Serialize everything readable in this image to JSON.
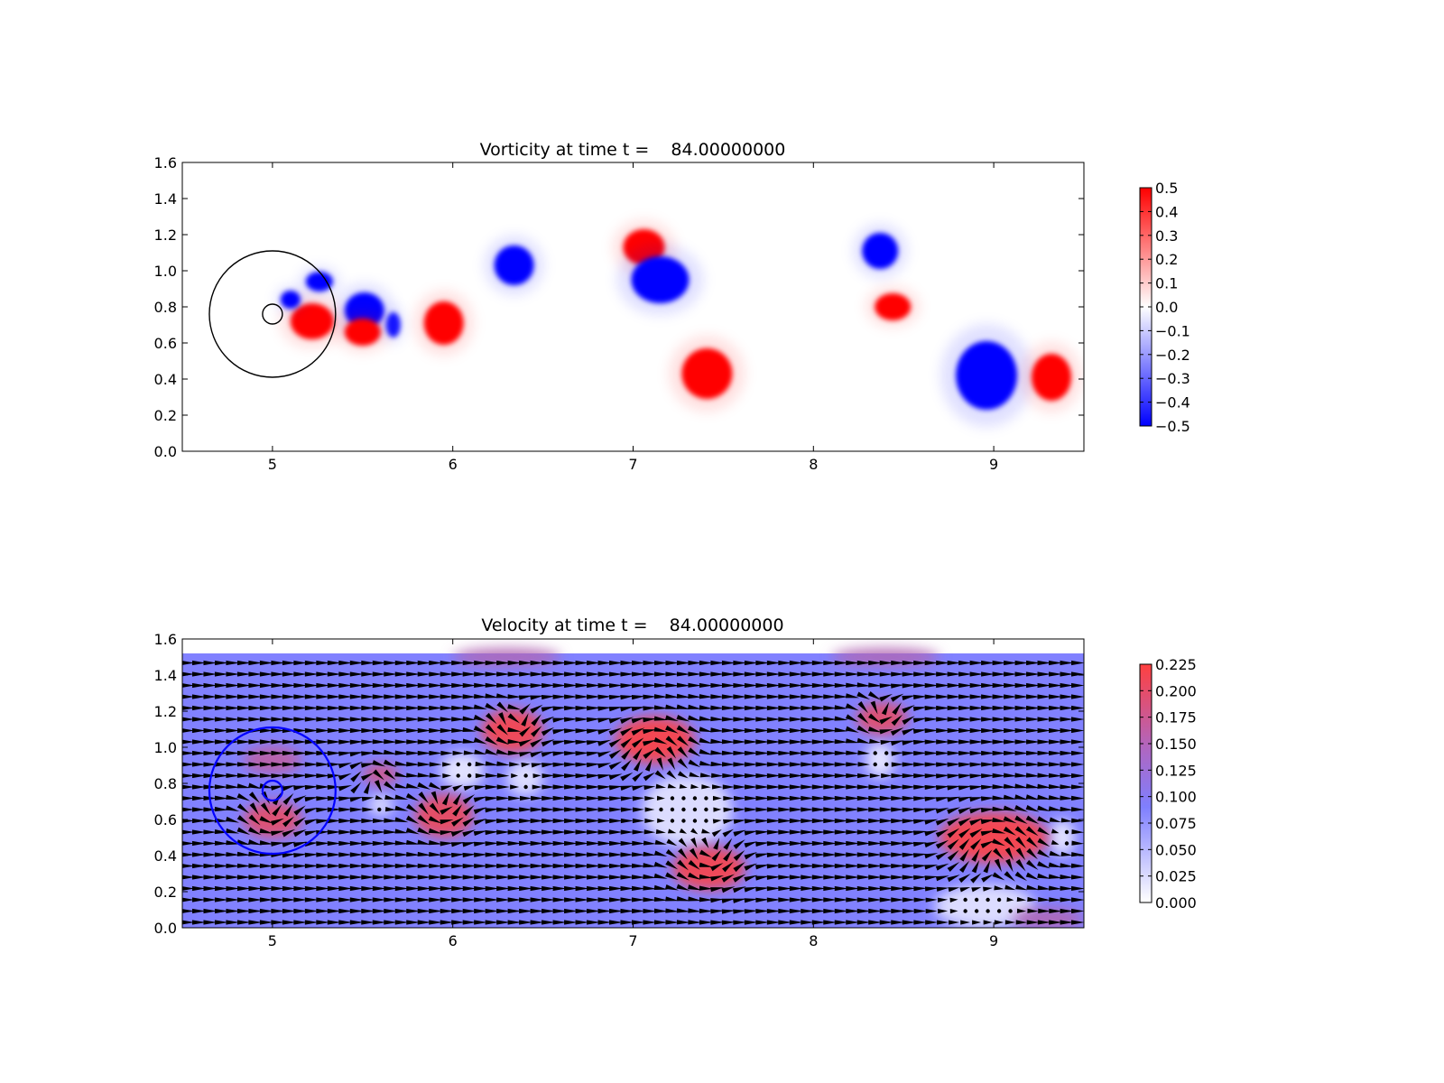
{
  "chart_data": [
    {
      "type": "heatmap",
      "title": "Vorticity at time t =    84.00000000",
      "xlabel": "",
      "ylabel": "",
      "xlim": [
        4.5,
        9.5
      ],
      "ylim": [
        0.0,
        1.6
      ],
      "xticks": [
        "5",
        "6",
        "7",
        "8",
        "9"
      ],
      "yticks": [
        "0.0",
        "0.2",
        "0.4",
        "0.6",
        "0.8",
        "1.0",
        "1.2",
        "1.4",
        "1.6"
      ],
      "colorbar": {
        "min": -0.5,
        "max": 0.5,
        "ticks": [
          "0.5",
          "0.4",
          "0.3",
          "0.2",
          "0.1",
          "0.0",
          "−0.1",
          "−0.2",
          "−0.3",
          "−0.4",
          "−0.5"
        ],
        "colors": {
          "negative": "#0000ff",
          "zero": "#ffffff",
          "positive": "#ff0000"
        }
      },
      "vortices": [
        {
          "x": 5.22,
          "y": 0.72,
          "rx": 0.12,
          "ry": 0.1,
          "value": 0.5
        },
        {
          "x": 5.26,
          "y": 0.94,
          "rx": 0.075,
          "ry": 0.055,
          "value": -0.5
        },
        {
          "x": 5.1,
          "y": 0.84,
          "rx": 0.055,
          "ry": 0.05,
          "value": -0.5
        },
        {
          "x": 5.51,
          "y": 0.78,
          "rx": 0.11,
          "ry": 0.1,
          "value": -0.5
        },
        {
          "x": 5.5,
          "y": 0.66,
          "rx": 0.1,
          "ry": 0.075,
          "value": 0.5
        },
        {
          "x": 5.67,
          "y": 0.7,
          "rx": 0.04,
          "ry": 0.07,
          "value": -0.45
        },
        {
          "x": 5.95,
          "y": 0.71,
          "rx": 0.11,
          "ry": 0.12,
          "value": 0.5
        },
        {
          "x": 6.34,
          "y": 1.03,
          "rx": 0.11,
          "ry": 0.11,
          "value": -0.5
        },
        {
          "x": 7.06,
          "y": 1.13,
          "rx": 0.115,
          "ry": 0.1,
          "value": 0.5
        },
        {
          "x": 7.15,
          "y": 0.95,
          "rx": 0.16,
          "ry": 0.13,
          "value": -0.5
        },
        {
          "x": 7.41,
          "y": 0.43,
          "rx": 0.14,
          "ry": 0.14,
          "value": 0.5
        },
        {
          "x": 8.37,
          "y": 1.11,
          "rx": 0.1,
          "ry": 0.1,
          "value": -0.5
        },
        {
          "x": 8.44,
          "y": 0.8,
          "rx": 0.1,
          "ry": 0.075,
          "value": 0.5
        },
        {
          "x": 8.96,
          "y": 0.42,
          "rx": 0.17,
          "ry": 0.19,
          "value": -0.5
        },
        {
          "x": 9.32,
          "y": 0.41,
          "rx": 0.11,
          "ry": 0.13,
          "value": 0.5
        }
      ],
      "overlays": [
        {
          "kind": "circle",
          "x": 5.0,
          "y": 0.76,
          "r": 0.35,
          "color": "#000000"
        },
        {
          "kind": "circle",
          "x": 5.0,
          "y": 0.76,
          "r": 0.055,
          "color": "#000000"
        }
      ]
    },
    {
      "type": "heatmap",
      "title": "Velocity at time t =    84.00000000",
      "xlabel": "",
      "ylabel": "",
      "xlim": [
        4.5,
        9.5
      ],
      "ylim": [
        0.0,
        1.6
      ],
      "field_ylim": [
        0.0,
        1.52
      ],
      "xticks": [
        "5",
        "6",
        "7",
        "8",
        "9"
      ],
      "yticks": [
        "0.0",
        "0.2",
        "0.4",
        "0.6",
        "0.8",
        "1.0",
        "1.2",
        "1.4",
        "1.6"
      ],
      "background_speed": 0.1,
      "colorbar": {
        "min": 0.0,
        "max": 0.225,
        "ticks": [
          "0.225",
          "0.200",
          "0.175",
          "0.150",
          "0.125",
          "0.100",
          "0.075",
          "0.050",
          "0.025",
          "0.000"
        ],
        "colors": {
          "low": "#ffffff",
          "mid": "#7f7fff",
          "high": "#ff4040"
        }
      },
      "quiver": {
        "color": "#000000",
        "spacing": 0.0625,
        "note_arrows": "mostly pointing +x"
      },
      "eddies": [
        {
          "x": 6.35,
          "y": 1.08,
          "r": 0.14,
          "sign": 1
        },
        {
          "x": 7.12,
          "y": 1.02,
          "r": 0.18,
          "sign": -1
        },
        {
          "x": 8.38,
          "y": 1.15,
          "r": 0.12,
          "sign": 1
        },
        {
          "x": 5.95,
          "y": 0.62,
          "r": 0.14,
          "sign": 1
        },
        {
          "x": 7.42,
          "y": 0.35,
          "r": 0.17,
          "sign": 1
        },
        {
          "x": 9.0,
          "y": 0.5,
          "r": 0.22,
          "sign": -1
        },
        {
          "x": 5.0,
          "y": 0.6,
          "r": 0.14,
          "sign": 1
        },
        {
          "x": 5.55,
          "y": 0.85,
          "r": 0.1,
          "sign": -1
        }
      ],
      "still_zones": [
        {
          "x": 6.05,
          "y": 0.87,
          "rx": 0.12,
          "ry": 0.1,
          "value": 0.01
        },
        {
          "x": 6.4,
          "y": 0.83,
          "rx": 0.1,
          "ry": 0.1,
          "value": 0.015
        },
        {
          "x": 7.3,
          "y": 0.65,
          "rx": 0.25,
          "ry": 0.2,
          "value": 0.015
        },
        {
          "x": 8.37,
          "y": 0.93,
          "rx": 0.08,
          "ry": 0.1,
          "value": 0.01
        },
        {
          "x": 8.95,
          "y": 0.12,
          "rx": 0.28,
          "ry": 0.12,
          "value": 0.015
        },
        {
          "x": 9.38,
          "y": 0.5,
          "rx": 0.07,
          "ry": 0.1,
          "value": 0.01
        },
        {
          "x": 5.6,
          "y": 0.68,
          "rx": 0.07,
          "ry": 0.06,
          "value": 0.02
        }
      ],
      "hot_zones": [
        {
          "x": 6.33,
          "y": 1.09,
          "rx": 0.17,
          "ry": 0.12,
          "value": 0.22
        },
        {
          "x": 7.12,
          "y": 1.04,
          "rx": 0.22,
          "ry": 0.13,
          "value": 0.225
        },
        {
          "x": 8.38,
          "y": 1.16,
          "rx": 0.14,
          "ry": 0.09,
          "value": 0.2
        },
        {
          "x": 5.95,
          "y": 0.62,
          "rx": 0.16,
          "ry": 0.12,
          "value": 0.21
        },
        {
          "x": 7.42,
          "y": 0.33,
          "rx": 0.2,
          "ry": 0.12,
          "value": 0.22
        },
        {
          "x": 9.0,
          "y": 0.5,
          "rx": 0.3,
          "ry": 0.14,
          "value": 0.225
        },
        {
          "x": 5.0,
          "y": 0.6,
          "rx": 0.16,
          "ry": 0.1,
          "value": 0.2
        },
        {
          "x": 5.0,
          "y": 0.93,
          "rx": 0.16,
          "ry": 0.08,
          "value": 0.16
        },
        {
          "x": 6.3,
          "y": 1.5,
          "rx": 0.3,
          "ry": 0.05,
          "value": 0.15
        },
        {
          "x": 8.4,
          "y": 1.5,
          "rx": 0.3,
          "ry": 0.05,
          "value": 0.15
        },
        {
          "x": 9.3,
          "y": 0.05,
          "rx": 0.2,
          "ry": 0.06,
          "value": 0.15
        },
        {
          "x": 5.6,
          "y": 0.85,
          "rx": 0.1,
          "ry": 0.06,
          "value": 0.18
        }
      ],
      "overlays": [
        {
          "kind": "circle",
          "x": 5.0,
          "y": 0.76,
          "r": 0.35,
          "color": "#0000ff"
        },
        {
          "kind": "circle",
          "x": 5.0,
          "y": 0.76,
          "r": 0.055,
          "color": "#0000ff"
        }
      ]
    }
  ]
}
